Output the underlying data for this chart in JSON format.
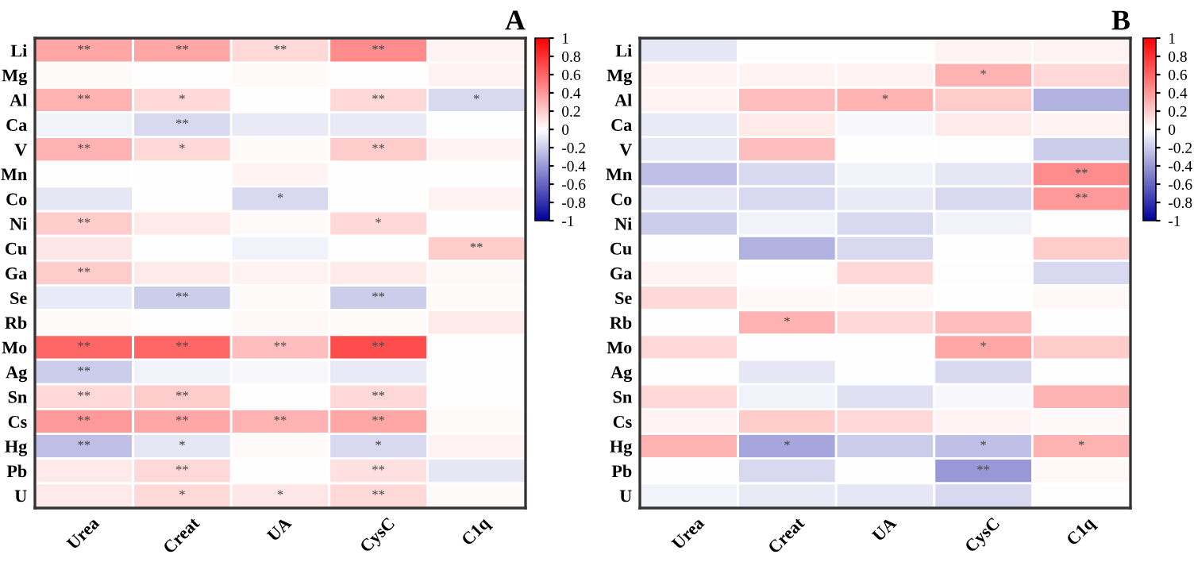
{
  "chart_data": [
    {
      "type": "heatmap",
      "title": "A",
      "categories": [
        "Urea",
        "Creat",
        "UA",
        "CysC",
        "C1q"
      ],
      "y_categories": [
        "Li",
        "Mg",
        "Al",
        "Ca",
        "V",
        "Mn",
        "Co",
        "Ni",
        "Cu",
        "Ga",
        "Se",
        "Rb",
        "Mo",
        "Ag",
        "Sn",
        "Cs",
        "Hg",
        "Pb",
        "U"
      ],
      "cells": [
        [
          0.35,
          0.35,
          0.15,
          0.45,
          0.05
        ],
        [
          0.02,
          0,
          0.02,
          0,
          0.05
        ],
        [
          0.3,
          0.15,
          0,
          0.15,
          -0.15
        ],
        [
          -0.05,
          -0.15,
          -0.08,
          -0.08,
          0
        ],
        [
          0.3,
          0.15,
          0.02,
          0.2,
          0.05
        ],
        [
          0,
          0,
          0.05,
          0,
          0
        ],
        [
          -0.1,
          0,
          -0.15,
          0,
          0.05
        ],
        [
          0.2,
          0.08,
          0.02,
          0.15,
          0
        ],
        [
          0.1,
          0,
          -0.05,
          0,
          0.2
        ],
        [
          0.2,
          0.08,
          0.05,
          0.08,
          0.03
        ],
        [
          -0.08,
          -0.2,
          0.02,
          -0.2,
          0.02
        ],
        [
          0.02,
          0,
          0.03,
          0.02,
          0.08
        ],
        [
          0.6,
          0.6,
          0.25,
          0.7,
          0
        ],
        [
          -0.2,
          -0.05,
          -0.03,
          -0.08,
          0
        ],
        [
          0.15,
          0.2,
          0,
          0.15,
          0
        ],
        [
          0.4,
          0.35,
          0.3,
          0.35,
          0.02
        ],
        [
          -0.25,
          -0.1,
          0.02,
          -0.15,
          0.05
        ],
        [
          0.08,
          0.15,
          0,
          0.12,
          -0.1
        ],
        [
          0.08,
          0.15,
          0.1,
          0.15,
          0.02
        ]
      ],
      "cell_labels": [
        [
          "**",
          "**",
          "**",
          "**",
          null
        ],
        [
          null,
          null,
          null,
          null,
          null
        ],
        [
          "**",
          "*",
          null,
          "**",
          "*"
        ],
        [
          null,
          "**",
          null,
          null,
          null
        ],
        [
          "**",
          "*",
          null,
          "**",
          null
        ],
        [
          null,
          null,
          null,
          null,
          null
        ],
        [
          null,
          null,
          "*",
          null,
          null
        ],
        [
          "**",
          null,
          null,
          "*",
          null
        ],
        [
          null,
          null,
          null,
          null,
          "**"
        ],
        [
          "**",
          null,
          null,
          null,
          null
        ],
        [
          null,
          "**",
          null,
          "**",
          null
        ],
        [
          null,
          null,
          null,
          null,
          null
        ],
        [
          "**",
          "**",
          "**",
          "**",
          null
        ],
        [
          "**",
          null,
          null,
          null,
          null
        ],
        [
          "**",
          "**",
          null,
          "**",
          null
        ],
        [
          "**",
          "**",
          "**",
          "**",
          null
        ],
        [
          "**",
          "*",
          null,
          "*",
          null
        ],
        [
          null,
          "**",
          null,
          "**",
          null
        ],
        [
          null,
          "*",
          "*",
          "**",
          null
        ]
      ],
      "clim": [
        -1,
        1
      ],
      "cticks": [
        -1,
        -0.8,
        -0.6,
        -0.4,
        -0.2,
        0,
        0.2,
        0.4,
        0.6,
        0.8,
        1
      ]
    },
    {
      "type": "heatmap",
      "title": "B",
      "categories": [
        "Urea",
        "Creat",
        "UA",
        "CysC",
        "C1q"
      ],
      "y_categories": [
        "Li",
        "Mg",
        "Al",
        "Ca",
        "V",
        "Mn",
        "Co",
        "Ni",
        "Cu",
        "Ga",
        "Se",
        "Rb",
        "Mo",
        "Ag",
        "Sn",
        "Cs",
        "Hg",
        "Pb",
        "U"
      ],
      "cells": [
        [
          -0.1,
          0,
          0,
          0.05,
          0.05
        ],
        [
          0.05,
          0.05,
          0.05,
          0.3,
          0.15
        ],
        [
          0.05,
          0.25,
          0.3,
          0.2,
          -0.3
        ],
        [
          -0.08,
          0.08,
          -0.03,
          0.08,
          0.05
        ],
        [
          -0.08,
          0.25,
          0,
          0,
          -0.2
        ],
        [
          -0.25,
          -0.15,
          -0.05,
          -0.1,
          0.45
        ],
        [
          -0.1,
          -0.15,
          -0.08,
          -0.15,
          0.4
        ],
        [
          -0.2,
          -0.05,
          -0.15,
          -0.05,
          0
        ],
        [
          0,
          -0.3,
          -0.15,
          0,
          0.2
        ],
        [
          0.05,
          0,
          0.15,
          0,
          -0.15
        ],
        [
          0.15,
          0.03,
          0.03,
          0,
          0.03
        ],
        [
          0,
          0.3,
          0.15,
          0.25,
          0
        ],
        [
          0.15,
          0,
          0,
          0.35,
          0.2
        ],
        [
          0,
          -0.1,
          0,
          -0.15,
          0
        ],
        [
          0.15,
          -0.05,
          -0.12,
          -0.03,
          0.3
        ],
        [
          0.05,
          0.2,
          0.15,
          0.05,
          0.03
        ],
        [
          0.3,
          -0.35,
          -0.2,
          -0.25,
          0.3
        ],
        [
          0,
          -0.15,
          0,
          -0.4,
          0.03
        ],
        [
          -0.05,
          -0.08,
          -0.1,
          -0.15,
          0
        ]
      ],
      "cell_labels": [
        [
          null,
          null,
          null,
          null,
          null
        ],
        [
          null,
          null,
          null,
          "*",
          null
        ],
        [
          null,
          null,
          "*",
          null,
          null
        ],
        [
          null,
          null,
          null,
          null,
          null
        ],
        [
          null,
          null,
          null,
          null,
          null
        ],
        [
          null,
          null,
          null,
          null,
          "**"
        ],
        [
          null,
          null,
          null,
          null,
          "**"
        ],
        [
          null,
          null,
          null,
          null,
          null
        ],
        [
          null,
          null,
          null,
          null,
          null
        ],
        [
          null,
          null,
          null,
          null,
          null
        ],
        [
          null,
          null,
          null,
          null,
          null
        ],
        [
          null,
          "*",
          null,
          null,
          null
        ],
        [
          null,
          null,
          null,
          "*",
          null
        ],
        [
          null,
          null,
          null,
          null,
          null
        ],
        [
          null,
          null,
          null,
          null,
          null
        ],
        [
          null,
          null,
          null,
          null,
          null
        ],
        [
          null,
          "*",
          null,
          "*",
          "*"
        ],
        [
          null,
          null,
          null,
          "**",
          null
        ],
        [
          null,
          null,
          null,
          null,
          null
        ]
      ],
      "clim": [
        -1,
        1
      ],
      "cticks": [
        -1,
        -0.8,
        -0.6,
        -0.4,
        -0.2,
        0,
        0.2,
        0.4,
        0.6,
        0.8,
        1
      ]
    }
  ]
}
